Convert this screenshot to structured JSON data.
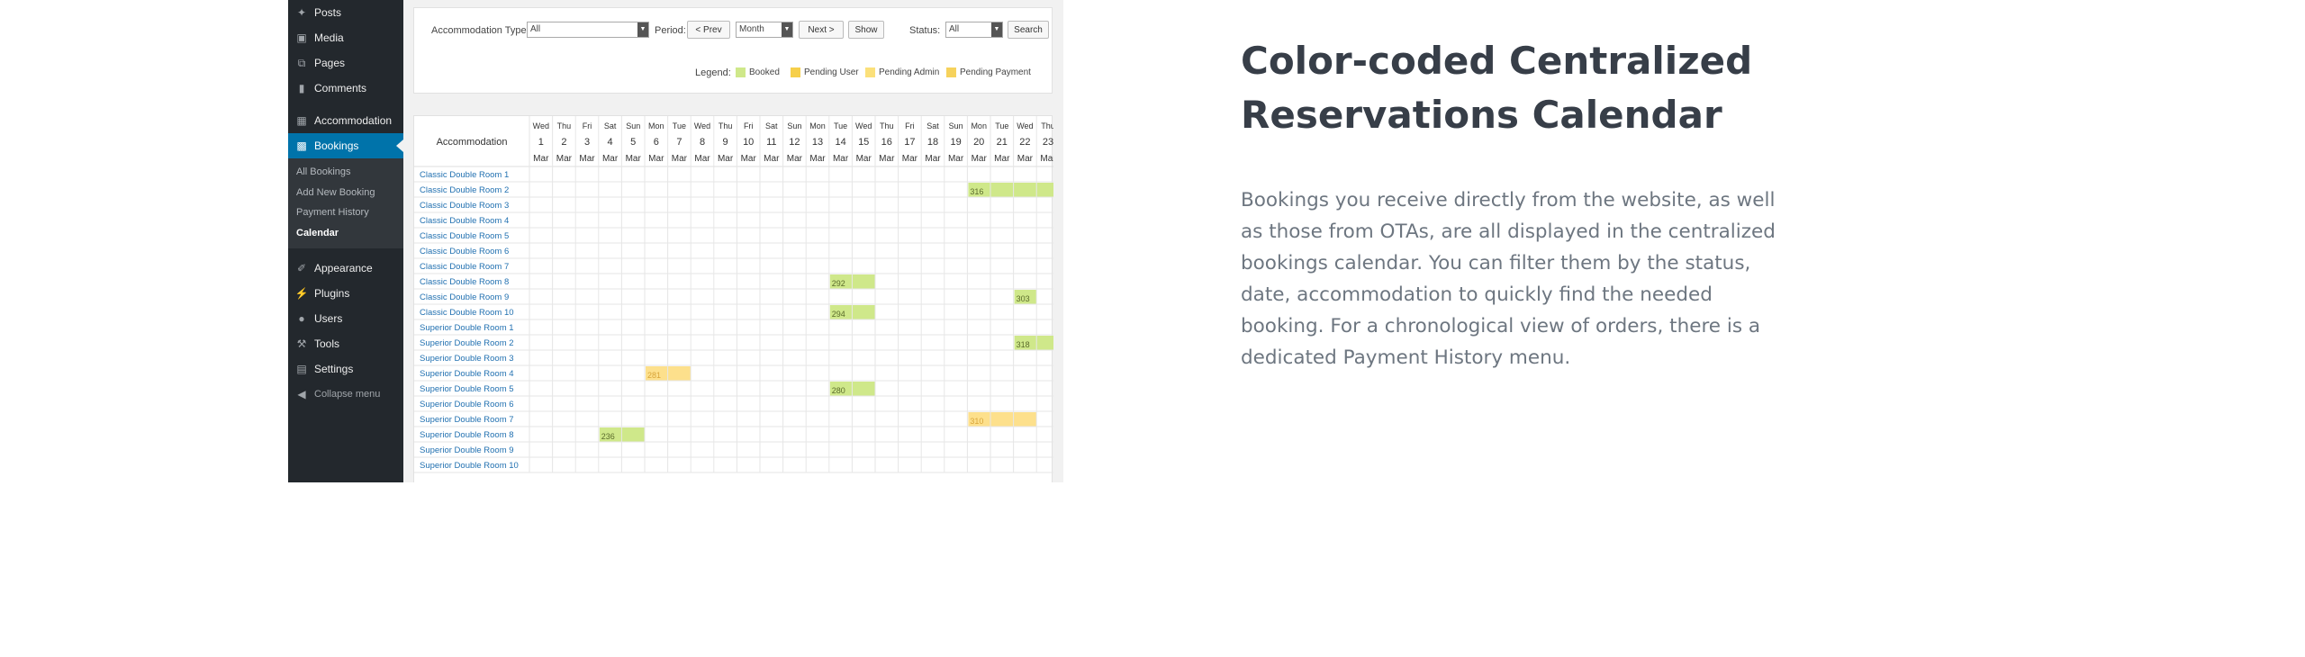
{
  "sidebar": {
    "items_top": [
      {
        "label": "Posts",
        "icon": "pushpin-icon"
      },
      {
        "label": "Media",
        "icon": "media-icon"
      },
      {
        "label": "Pages",
        "icon": "pages-icon"
      },
      {
        "label": "Comments",
        "icon": "comments-icon"
      }
    ],
    "accommodation": {
      "label": "Accommodation",
      "icon": "building-icon"
    },
    "bookings": {
      "label": "Bookings",
      "icon": "calendar-icon"
    },
    "bookings_submenu": [
      "All Bookings",
      "Add New Booking",
      "Payment History",
      "Calendar"
    ],
    "items_bottom": [
      {
        "label": "Appearance",
        "icon": "brush-icon"
      },
      {
        "label": "Plugins",
        "icon": "plug-icon"
      },
      {
        "label": "Users",
        "icon": "users-icon"
      },
      {
        "label": "Tools",
        "icon": "wrench-icon"
      },
      {
        "label": "Settings",
        "icon": "settings-icon"
      }
    ],
    "collapse_label": "Collapse menu"
  },
  "filters": {
    "accommodation_type_label": "Accommodation Type:",
    "accommodation_type_value": "All",
    "period_label": "Period:",
    "prev_label": "< Prev",
    "period_value": "Month",
    "next_label": "Next >",
    "show_label": "Show",
    "status_label": "Status:",
    "status_value": "All",
    "search_label": "Search"
  },
  "legend": {
    "label": "Legend:",
    "items": [
      {
        "label": "Booked",
        "color": "#cfe88a"
      },
      {
        "label": "Pending User",
        "color": "#f6cf4a"
      },
      {
        "label": "Pending Admin",
        "color": "#fbe07a"
      },
      {
        "label": "Pending Payment",
        "color": "#f6d25c"
      }
    ]
  },
  "calendar": {
    "header_label": "Accommodation",
    "days": [
      {
        "dow": "Wed",
        "day": "1",
        "month": "Mar"
      },
      {
        "dow": "Thu",
        "day": "2",
        "month": "Mar"
      },
      {
        "dow": "Fri",
        "day": "3",
        "month": "Mar"
      },
      {
        "dow": "Sat",
        "day": "4",
        "month": "Mar"
      },
      {
        "dow": "Sun",
        "day": "5",
        "month": "Mar"
      },
      {
        "dow": "Mon",
        "day": "6",
        "month": "Mar"
      },
      {
        "dow": "Tue",
        "day": "7",
        "month": "Mar"
      },
      {
        "dow": "Wed",
        "day": "8",
        "month": "Mar"
      },
      {
        "dow": "Thu",
        "day": "9",
        "month": "Mar"
      },
      {
        "dow": "Fri",
        "day": "10",
        "month": "Mar"
      },
      {
        "dow": "Sat",
        "day": "11",
        "month": "Mar"
      },
      {
        "dow": "Sun",
        "day": "12",
        "month": "Mar"
      },
      {
        "dow": "Mon",
        "day": "13",
        "month": "Mar"
      },
      {
        "dow": "Tue",
        "day": "14",
        "month": "Mar"
      },
      {
        "dow": "Wed",
        "day": "15",
        "month": "Mar"
      },
      {
        "dow": "Thu",
        "day": "16",
        "month": "Mar"
      },
      {
        "dow": "Fri",
        "day": "17",
        "month": "Mar"
      },
      {
        "dow": "Sat",
        "day": "18",
        "month": "Mar"
      },
      {
        "dow": "Sun",
        "day": "19",
        "month": "Mar"
      },
      {
        "dow": "Mon",
        "day": "20",
        "month": "Mar"
      },
      {
        "dow": "Tue",
        "day": "21",
        "month": "Mar"
      },
      {
        "dow": "Wed",
        "day": "22",
        "month": "Mar"
      },
      {
        "dow": "Thu",
        "day": "23",
        "month": "Mar"
      }
    ],
    "rooms": [
      "Classic Double Room 1",
      "Classic Double Room 2",
      "Classic Double Room 3",
      "Classic Double Room 4",
      "Classic Double Room 5",
      "Classic Double Room 6",
      "Classic Double Room 7",
      "Classic Double Room 8",
      "Classic Double Room 9",
      "Classic Double Room 10",
      "Superior Double Room 1",
      "Superior Double Room 2",
      "Superior Double Room 3",
      "Superior Double Room 4",
      "Superior Double Room 5",
      "Superior Double Room 6",
      "Superior Double Room 7",
      "Superior Double Room 8",
      "Superior Double Room 9",
      "Superior Double Room 10"
    ],
    "bookings": [
      {
        "room": "Classic Double Room 2",
        "start": "20 Mar",
        "end": "23 Mar",
        "label": "316",
        "status": "booked"
      },
      {
        "room": "Classic Double Room 8",
        "start": "14 Mar",
        "end": "15 Mar",
        "label": "292",
        "status": "booked"
      },
      {
        "room": "Classic Double Room 9",
        "start": "22 Mar",
        "end": "22 Mar",
        "label": "303",
        "status": "booked"
      },
      {
        "room": "Classic Double Room 10",
        "start": "14 Mar",
        "end": "15 Mar",
        "label": "294",
        "status": "booked"
      },
      {
        "room": "Superior Double Room 2",
        "start": "22 Mar",
        "end": "23 Mar",
        "label": "318",
        "status": "booked"
      },
      {
        "room": "Superior Double Room 4",
        "start": "6 Mar",
        "end": "7 Mar",
        "label": "281",
        "status": "pending"
      },
      {
        "room": "Superior Double Room 5",
        "start": "14 Mar",
        "end": "15 Mar",
        "label": "280",
        "status": "booked"
      },
      {
        "room": "Superior Double Room 7",
        "start": "20 Mar",
        "end": "22 Mar",
        "label": "310",
        "status": "pending"
      },
      {
        "room": "Superior Double Room 8",
        "start": "4 Mar",
        "end": "5 Mar",
        "label": "236",
        "status": "booked"
      }
    ],
    "status_colors": {
      "booked": "#cfe88a",
      "pending": "#fde08c"
    }
  },
  "feature": {
    "title": "Color-coded Centralized Reservations Calendar",
    "description": "Bookings you receive directly from the website, as well as those from OTAs, are all displayed in the centralized bookings calendar. You can filter them by the status, date, accommodation to quickly find the needed booking. For a chronological view of orders, there is a dedicated Payment History menu."
  }
}
